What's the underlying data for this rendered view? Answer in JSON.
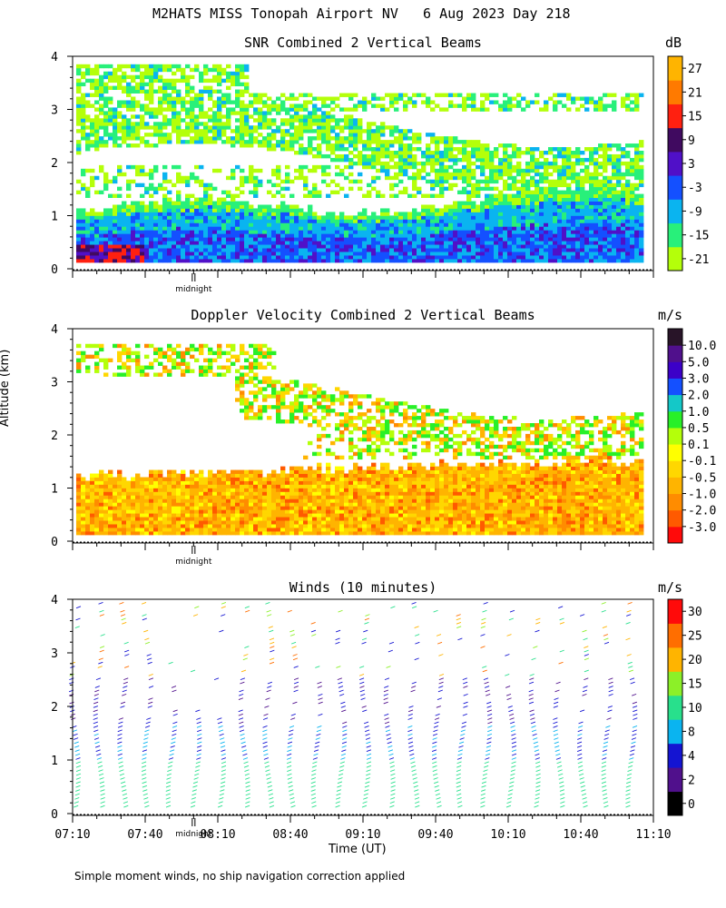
{
  "figure": {
    "main_title": "M2HATS MISS Tonopah Airport NV   6 Aug 2023 Day 218",
    "y_axis_label": "Altitude (km)",
    "x_axis_label": "Time (UT)",
    "footnote": "Simple moment winds, no ship navigation correction applied",
    "midnight_label": "midnight"
  },
  "chart_data": [
    {
      "type": "heatmap",
      "title": "SNR Combined 2 Vertical Beams",
      "colorbar_unit": "dB",
      "colorbar_ticks": [
        "-21",
        "-15",
        "-9",
        "-3",
        "3",
        "9",
        "15",
        "21",
        "27"
      ],
      "colorbar_colors": [
        "#b4ff0a",
        "#28f07a",
        "#0ab4f0",
        "#1450ff",
        "#5010c8",
        "#400a60",
        "#ff2010",
        "#ff7a00",
        "#ffb400"
      ],
      "x_range_hours": [
        7.1667,
        11.1667
      ],
      "ylim_km": [
        0,
        4
      ],
      "y_ticks": [
        "0",
        "1",
        "2",
        "3",
        "4"
      ]
    },
    {
      "type": "heatmap",
      "title": "Doppler Velocity Combined 2 Vertical Beams",
      "colorbar_unit": "m/s",
      "colorbar_ticks": [
        "-3.0",
        "-2.0",
        "-1.0",
        "-0.5",
        "-0.1",
        "0.1",
        "0.5",
        "1.0",
        "2.0",
        "3.0",
        "5.0",
        "10.0"
      ],
      "colorbar_colors": [
        "#ff0a0a",
        "#ff5a00",
        "#ff8c00",
        "#ffb400",
        "#ffd700",
        "#ffff00",
        "#b4ff0a",
        "#28f028",
        "#14c8c8",
        "#1450ff",
        "#3c00c8",
        "#50108c",
        "#281428"
      ],
      "x_range_hours": [
        7.1667,
        11.1667
      ],
      "ylim_km": [
        0,
        4
      ],
      "y_ticks": [
        "0",
        "1",
        "2",
        "3",
        "4"
      ]
    },
    {
      "type": "scatter",
      "title": "Winds (10 minutes)",
      "colorbar_unit": "m/s",
      "colorbar_ticks": [
        "0",
        "2",
        "4",
        "8",
        "10",
        "15",
        "20",
        "25",
        "30"
      ],
      "colorbar_colors": [
        "#000000",
        "#50108c",
        "#1414d2",
        "#0ab4f0",
        "#28e08c",
        "#8cf028",
        "#ffb400",
        "#ff6e00",
        "#ff0a0a"
      ],
      "x_ticks": [
        "07:10",
        "07:40",
        "08:10",
        "08:40",
        "09:10",
        "09:40",
        "10:10",
        "10:40",
        "11:10"
      ],
      "x_range_hours": [
        7.1667,
        11.1667
      ],
      "ylim_km": [
        0,
        4
      ],
      "y_ticks": [
        "0",
        "1",
        "2",
        "3",
        "4"
      ],
      "barb_times_hours": [
        7.1667,
        7.3333,
        7.5,
        7.6667,
        7.8333,
        8.0,
        8.1667,
        8.3333,
        8.5,
        8.6667,
        8.8333,
        9.0,
        9.1667,
        9.3333,
        9.5,
        9.6667,
        9.8333,
        10.0,
        10.1667,
        10.3333,
        10.5,
        10.6667,
        10.8333,
        11.0
      ],
      "midnight_hour": 8.0
    }
  ]
}
